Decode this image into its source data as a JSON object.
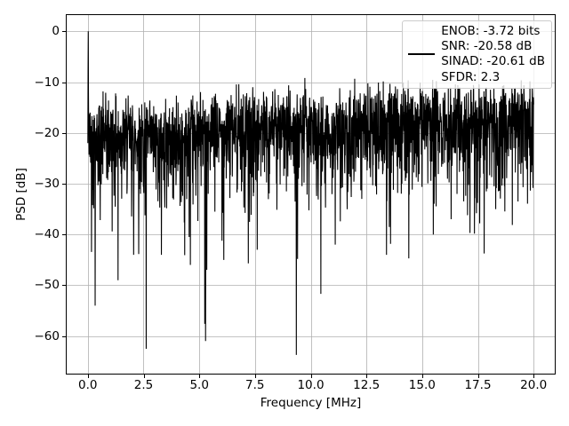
{
  "figure": {
    "background_color": "#ffffff",
    "spine_color": "#000000",
    "grid_color": "#b0b0b0",
    "xlabel": "Frequency [MHz]",
    "ylabel": "PSD [dB]",
    "x_tick_labels": [
      "0.0",
      "2.5",
      "5.0",
      "7.5",
      "10.0",
      "12.5",
      "15.0",
      "17.5",
      "20.0"
    ],
    "y_tick_labels": [
      "0",
      "−10",
      "−20",
      "−30",
      "−40",
      "−50",
      "−60"
    ],
    "legend": {
      "border_color": "#cccccc",
      "background": "rgba(255,255,255,0.8)",
      "swatch_color": "#000000",
      "entries": [
        "ENOB: -3.72 bits",
        "SNR: -20.58 dB",
        "SINAD: -20.61 dB",
        "SFDR: 2.3"
      ]
    }
  },
  "chart_data": {
    "type": "line",
    "title": "",
    "xlabel": "Frequency [MHz]",
    "ylabel": "PSD [dB]",
    "xlim": [
      -0.95,
      20.95
    ],
    "ylim": [
      -67.4,
      3.2
    ],
    "xticks": [
      0,
      2.5,
      5,
      7.5,
      10,
      12.5,
      15,
      17.5,
      20
    ],
    "yticks": [
      0,
      -10,
      -20,
      -30,
      -40,
      -50,
      -60
    ],
    "grid": true,
    "legend_position": "upper right",
    "metrics": {
      "ENOB": "-3.72 bits",
      "SNR": "-20.58 dB",
      "SINAD": "-20.61 dB",
      "SFDR": "2.3"
    },
    "series": [
      {
        "name": "ENOB: -3.72 bits\nSNR: -20.58 dB\nSINAD: -20.61 dB\nSFDR: 2.3",
        "color": "#000000",
        "line_width": 1.1,
        "points": "dense FFT noise spectrum, 0 to 20 MHz, synthesized from the parameters below (values read off the plot)",
        "synthesis": {
          "n_points": 2200,
          "x_range": [
            0,
            20
          ],
          "seed": 42,
          "distribution": "floor(x) + 10*log10(Exponential(1))",
          "noise_floor_db_at_0MHz": -20,
          "noise_floor_slope_db_per_MHz": 0.2,
          "floor_wiggle": {
            "amplitude_db": 0.7,
            "omega": 0.9,
            "phase": 1.2
          },
          "clamp_min_db": -66,
          "dc_peak_points": [
            [
              0.0,
              -22
            ],
            [
              0.009,
              -8
            ],
            [
              0.018,
              0.0
            ],
            [
              0.027,
              -12
            ],
            [
              0.036,
              -19
            ]
          ],
          "peak_db": 0.0,
          "typical_upper_envelope_db": {
            "at_0MHz": -13,
            "at_20MHz": -9
          },
          "typical_mass_band_db": {
            "at_0MHz": [
              -30,
              -15
            ],
            "at_20MHz": [
              -25,
              -10
            ]
          },
          "deep_notches": [
            [
              0.33,
              -54
            ],
            [
              1.35,
              -49
            ],
            [
              2.05,
              -44
            ],
            [
              2.62,
              -62.5
            ],
            [
              3.3,
              -44
            ],
            [
              4.6,
              -46
            ],
            [
              6.1,
              -45
            ],
            [
              7.6,
              -43
            ],
            [
              9.35,
              -63.7
            ],
            [
              10.45,
              -51.7
            ],
            [
              11.1,
              -42
            ],
            [
              13.4,
              -44
            ],
            [
              14.4,
              -44.7
            ],
            [
              15.5,
              -40
            ],
            [
              16.3,
              -37
            ],
            [
              18.3,
              -35
            ],
            [
              19.3,
              -33.5
            ]
          ]
        }
      }
    ]
  }
}
